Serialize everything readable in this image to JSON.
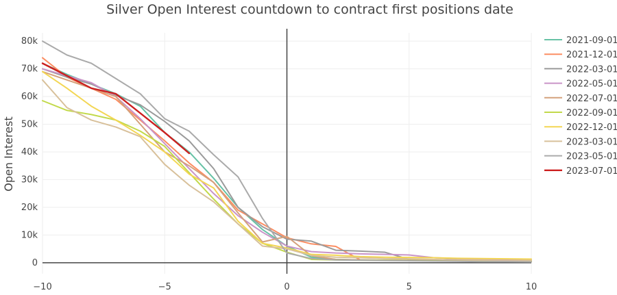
{
  "chart_data": {
    "type": "line",
    "title": "Silver Open Interest countdown to contract first positions date",
    "xlabel": "",
    "ylabel": "Open Interest",
    "xlim": [
      -10,
      10
    ],
    "ylim": [
      -4000,
      83000
    ],
    "xticks": [
      -10,
      -5,
      0,
      5,
      10
    ],
    "xtick_labels": [
      "−10",
      "−5",
      "0",
      "5",
      "10"
    ],
    "yticks": [
      0,
      10000,
      20000,
      30000,
      40000,
      50000,
      60000,
      70000,
      80000
    ],
    "ytick_labels": [
      "0",
      "10k",
      "20k",
      "30k",
      "40k",
      "50k",
      "60k",
      "70k",
      "80k"
    ],
    "grid": true,
    "legend_position": "right",
    "series": [
      {
        "name": "2021-09-01",
        "color": "#66c2a5",
        "x": [
          -10,
          -9,
          -8,
          -7,
          -6,
          -5,
          -4,
          -3,
          -2,
          -1,
          0,
          1,
          2,
          3,
          4,
          5,
          6,
          7,
          8,
          9,
          10
        ],
        "y": [
          72000,
          68000,
          64500,
          61000,
          56500,
          47000,
          40000,
          30500,
          20000,
          12000,
          6000,
          2000,
          1200,
          1000,
          900,
          800,
          700,
          600,
          600,
          500,
          500
        ]
      },
      {
        "name": "2021-12-01",
        "color": "#fc8d62",
        "x": [
          -10,
          -9,
          -8,
          -7,
          -6,
          -5,
          -4,
          -3,
          -2,
          -1,
          0,
          1,
          2,
          3,
          4,
          5,
          6,
          7,
          8,
          9,
          10
        ],
        "y": [
          74000,
          67000,
          63000,
          59000,
          51500,
          44000,
          36000,
          29000,
          19000,
          14000,
          9000,
          6800,
          5900,
          1000,
          900,
          800,
          700,
          600,
          500,
          500,
          500
        ]
      },
      {
        "name": "2022-03-01",
        "color": "#9a9a9a",
        "x": [
          -10,
          -9,
          -8,
          -7,
          -6,
          -5,
          -4,
          -3,
          -2,
          -1,
          0,
          1,
          2,
          3,
          4,
          5,
          6,
          7,
          8,
          9,
          10
        ],
        "y": [
          70000,
          67000,
          64500,
          60500,
          57000,
          51000,
          44000,
          34000,
          20000,
          13000,
          8500,
          7800,
          4500,
          4200,
          3800,
          1200,
          800,
          1500,
          900,
          700,
          600
        ]
      },
      {
        "name": "2022-05-01",
        "color": "#c994c7",
        "x": [
          -10,
          -9,
          -8,
          -7,
          -6,
          -5,
          -4,
          -3,
          -2,
          -1,
          0,
          1,
          2,
          3,
          4,
          5,
          6,
          7,
          8,
          9,
          10
        ],
        "y": [
          70000,
          67500,
          65000,
          60000,
          52000,
          43000,
          34000,
          25000,
          17000,
          11000,
          6000,
          4000,
          3500,
          3200,
          3000,
          2800,
          1800,
          1500,
          1200,
          1000,
          900
        ]
      },
      {
        "name": "2022-07-01",
        "color": "#d4a17b",
        "x": [
          -10,
          -9,
          -8,
          -7,
          -6,
          -5,
          -4,
          -3,
          -2,
          -1,
          0,
          1,
          2,
          3,
          4,
          5,
          6,
          7,
          8,
          9,
          10
        ],
        "y": [
          69000,
          66000,
          63000,
          60000,
          50000,
          40000,
          35000,
          29000,
          18000,
          7500,
          9500,
          2500,
          1200,
          1000,
          900,
          900,
          800,
          700,
          600,
          600,
          500
        ]
      },
      {
        "name": "2022-09-01",
        "color": "#c2d94a",
        "x": [
          -10,
          -9,
          -8,
          -7,
          -6,
          -5,
          -4,
          -3,
          -2,
          -1,
          0,
          1,
          2,
          3,
          4,
          5,
          6,
          7,
          8,
          9,
          10
        ],
        "y": [
          58500,
          55000,
          53500,
          51500,
          47500,
          42000,
          32500,
          23000,
          14000,
          7000,
          3800,
          1200,
          1000,
          900,
          900,
          800,
          700,
          600,
          600,
          500,
          500
        ]
      },
      {
        "name": "2022-12-01",
        "color": "#f3d653",
        "x": [
          -10,
          -9,
          -8,
          -7,
          -6,
          -5,
          -4,
          -3,
          -2,
          -1,
          0,
          1,
          2,
          3,
          4,
          5,
          6,
          7,
          8,
          9,
          10
        ],
        "y": [
          69000,
          63000,
          56500,
          51500,
          46000,
          40000,
          32000,
          27000,
          15000,
          7000,
          5300,
          3000,
          2700,
          2200,
          2000,
          1900,
          1800,
          1600,
          1500,
          1400,
          1300
        ]
      },
      {
        "name": "2023-03-01",
        "color": "#d8c09a",
        "x": [
          -10,
          -9,
          -8,
          -7,
          -6,
          -5,
          -4,
          -3,
          -2,
          -1,
          0,
          1,
          2,
          3,
          4,
          5,
          6,
          7,
          8,
          9,
          10
        ],
        "y": [
          66000,
          56000,
          51500,
          49000,
          45500,
          35500,
          28000,
          22000,
          14000,
          6000,
          5000,
          2600,
          2000,
          1800,
          1500,
          1400,
          1200,
          1000,
          900,
          800,
          800
        ]
      },
      {
        "name": "2023-05-01",
        "color": "#aaaaaa",
        "x": [
          -10,
          -9,
          -8,
          -7,
          -6,
          -5,
          -4,
          -3,
          -2,
          -1,
          0,
          1,
          2,
          3,
          4,
          5,
          6,
          7,
          8,
          9,
          10
        ],
        "y": [
          80000,
          75000,
          72000,
          66500,
          61000,
          52000,
          47500,
          39000,
          31000,
          16000,
          3500,
          1500,
          1000,
          900,
          800,
          700,
          600,
          500,
          400,
          400,
          300
        ]
      },
      {
        "name": "2023-07-01",
        "color": "#cc1f1f",
        "x": [
          -10,
          -9,
          -8,
          -7,
          -6,
          -5,
          -4
        ],
        "y": [
          72000,
          67500,
          63000,
          61000,
          54000,
          47000,
          39500
        ]
      }
    ]
  }
}
